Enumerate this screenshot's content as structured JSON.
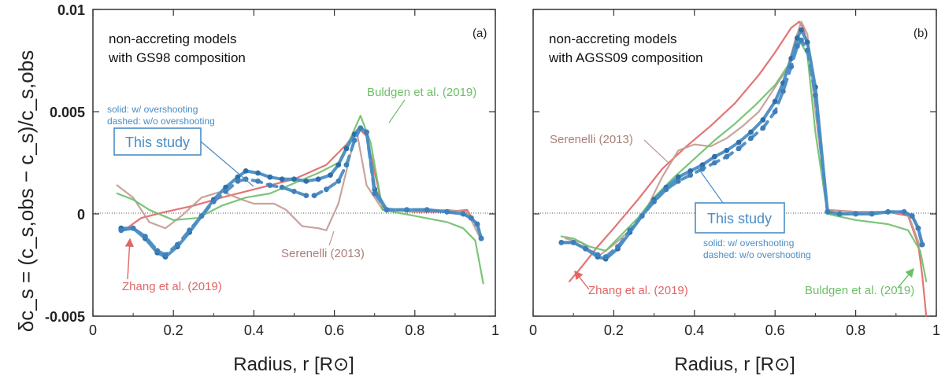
{
  "y_axis_label": "δc_s = (c_s,obs − c_s)/c_s,obs",
  "chart_data": [
    {
      "type": "line",
      "panel_tag": "(a)",
      "xlabel": "Radius, r [R⊙]",
      "x_ticks": [
        "0",
        "0.2",
        "0.4",
        "0.6",
        "0.8",
        "1"
      ],
      "y_ticks": [
        "-0.005",
        "0",
        "0.005",
        "0.01"
      ],
      "xlim": [
        0,
        1
      ],
      "ylim": [
        -0.005,
        0.01
      ],
      "zero_line": true,
      "annotations": {
        "model_line1": "non-accreting models",
        "model_line2": "with GS98 composition",
        "legend_solid": "solid: w/ overshooting",
        "legend_dashed": "dashed: w/o overshooting",
        "this_study": "This study",
        "serenelli": "Serenelli (2013)",
        "zhang": "Zhang et al. (2019)",
        "buldgen": "Buldgen et al. (2019)"
      },
      "series": [
        {
          "name": "Zhang et al. (2019)",
          "color": "#e06666",
          "style": "solid",
          "x": [
            0.07,
            0.12,
            0.18,
            0.25,
            0.32,
            0.4,
            0.5,
            0.58,
            0.63,
            0.66,
            0.68,
            0.72,
            0.8,
            0.88,
            0.93,
            0.96
          ],
          "y": [
            -0.0009,
            -0.0002,
            0.0001,
            0.0004,
            0.0008,
            0.0012,
            0.0017,
            0.0024,
            0.0034,
            0.0042,
            0.0038,
            0.0003,
            0.0001,
            0.0001,
            0.0002,
            -0.0008
          ]
        },
        {
          "name": "Serenelli (2013)",
          "color": "#c29a92",
          "style": "solid",
          "x": [
            0.06,
            0.1,
            0.14,
            0.18,
            0.22,
            0.27,
            0.32,
            0.37,
            0.4,
            0.45,
            0.48,
            0.52,
            0.56,
            0.58,
            0.61,
            0.63,
            0.655,
            0.68,
            0.72,
            0.8,
            0.88,
            0.93,
            0.96
          ],
          "y": [
            0.0014,
            0.0008,
            -0.0004,
            -0.0007,
            -0.0001,
            0.0008,
            0.0011,
            0.0007,
            0.0005,
            0.0005,
            0.0002,
            -0.0006,
            -0.0007,
            -0.0008,
            0.0005,
            0.0021,
            0.0041,
            0.0014,
            0.0002,
            0.0001,
            0.0002,
            0.0001,
            -0.0011
          ]
        },
        {
          "name": "Buldgen et al. (2019)",
          "color": "#6dbf68",
          "style": "solid",
          "x": [
            0.06,
            0.1,
            0.14,
            0.2,
            0.26,
            0.32,
            0.38,
            0.44,
            0.5,
            0.56,
            0.61,
            0.64,
            0.665,
            0.69,
            0.72,
            0.8,
            0.88,
            0.92,
            0.95,
            0.97
          ],
          "y": [
            0.001,
            0.0007,
            0.0002,
            -0.0003,
            -0.0002,
            0.0004,
            0.0008,
            0.001,
            0.0015,
            0.002,
            0.0025,
            0.0037,
            0.0048,
            0.0035,
            0.0002,
            -0.0001,
            -0.0004,
            -0.0007,
            -0.0013,
            -0.0034
          ]
        },
        {
          "name": "This study (w/ overshooting)",
          "color": "#4a8dc4",
          "style": "solid",
          "x": [
            0.07,
            0.1,
            0.13,
            0.16,
            0.18,
            0.21,
            0.24,
            0.27,
            0.3,
            0.33,
            0.36,
            0.38,
            0.41,
            0.44,
            0.47,
            0.5,
            0.53,
            0.56,
            0.59,
            0.61,
            0.63,
            0.65,
            0.665,
            0.68,
            0.7,
            0.73,
            0.78,
            0.83,
            0.88,
            0.92,
            0.94,
            0.955,
            0.965
          ],
          "y": [
            -0.0007,
            -0.0007,
            -0.0012,
            -0.0019,
            -0.0021,
            -0.0016,
            -0.0009,
            -0.0001,
            0.0007,
            0.0013,
            0.0018,
            0.0021,
            0.002,
            0.0018,
            0.0017,
            0.0017,
            0.0016,
            0.0017,
            0.0019,
            0.0024,
            0.0032,
            0.0039,
            0.0042,
            0.004,
            0.0012,
            0.0002,
            0.0002,
            0.0002,
            0.0001,
            0.0,
            -0.0002,
            -0.0005,
            -0.0012
          ]
        },
        {
          "name": "This study (w/o overshooting)",
          "color": "#4a8dc4",
          "style": "dashed",
          "x": [
            0.07,
            0.1,
            0.13,
            0.16,
            0.18,
            0.21,
            0.24,
            0.27,
            0.3,
            0.33,
            0.36,
            0.38,
            0.41,
            0.44,
            0.47,
            0.5,
            0.53,
            0.55,
            0.58,
            0.61,
            0.63,
            0.65,
            0.665,
            0.68,
            0.7,
            0.73,
            0.78,
            0.83,
            0.88,
            0.92,
            0.94,
            0.955,
            0.965
          ],
          "y": [
            -0.0008,
            -0.0007,
            -0.0011,
            -0.0018,
            -0.002,
            -0.0015,
            -0.0008,
            -0.0001,
            0.0006,
            0.0011,
            0.0016,
            0.0017,
            0.0016,
            0.0014,
            0.0013,
            0.0011,
            0.0009,
            0.0009,
            0.0012,
            0.0016,
            0.0024,
            0.0036,
            0.0042,
            0.004,
            0.001,
            0.0002,
            0.0002,
            0.0002,
            0.0001,
            0.0,
            -0.0002,
            -0.0005,
            -0.0012
          ]
        }
      ]
    },
    {
      "type": "line",
      "panel_tag": "(b)",
      "xlabel": "Radius, r [R⊙]",
      "x_ticks": [
        "0",
        "0.2",
        "0.4",
        "0.6",
        "0.8",
        "1"
      ],
      "y_ticks": [
        "-0.005",
        "0",
        "0.005",
        "0.01"
      ],
      "xlim": [
        0,
        1
      ],
      "ylim": [
        -0.005,
        0.01
      ],
      "zero_line": true,
      "annotations": {
        "model_line1": "non-accreting models",
        "model_line2": "with AGSS09 composition",
        "legend_solid": "solid: w/ overshooting",
        "legend_dashed": "dashed: w/o overshooting",
        "this_study": "This study",
        "serenelli": "Serenelli (2013)",
        "zhang": "Zhang et al. (2019)",
        "buldgen": "Buldgen et al. (2019)"
      },
      "series": [
        {
          "name": "Zhang et al. (2019)",
          "color": "#e06666",
          "style": "solid",
          "x": [
            0.09,
            0.12,
            0.16,
            0.2,
            0.26,
            0.32,
            0.38,
            0.44,
            0.5,
            0.56,
            0.6,
            0.64,
            0.66,
            0.67,
            0.69,
            0.73,
            0.8,
            0.88,
            0.93,
            0.955,
            0.965,
            0.975
          ],
          "y": [
            -0.0033,
            -0.0026,
            -0.0016,
            -0.0007,
            0.0007,
            0.0022,
            0.0033,
            0.0043,
            0.0054,
            0.0068,
            0.0079,
            0.0091,
            0.0094,
            0.0091,
            0.0075,
            0.0002,
            0.0001,
            0.0001,
            -0.0001,
            -0.0015,
            -0.003,
            -0.005
          ]
        },
        {
          "name": "Serenelli (2013)",
          "color": "#c29a92",
          "style": "solid",
          "x": [
            0.08,
            0.12,
            0.16,
            0.2,
            0.24,
            0.28,
            0.32,
            0.36,
            0.4,
            0.44,
            0.48,
            0.52,
            0.56,
            0.6,
            0.63,
            0.65,
            0.665,
            0.68,
            0.7,
            0.73,
            0.8,
            0.88,
            0.93,
            0.96
          ],
          "y": [
            -0.0012,
            -0.0014,
            -0.0021,
            -0.0015,
            -0.0008,
            0.0002,
            0.0018,
            0.0031,
            0.0034,
            0.0033,
            0.0037,
            0.0043,
            0.005,
            0.0062,
            0.0071,
            0.0085,
            0.0094,
            0.0088,
            0.005,
            0.0002,
            0.0001,
            0.0001,
            0.0,
            -0.0016
          ]
        },
        {
          "name": "Buldgen et al. (2019)",
          "color": "#6dbf68",
          "style": "solid",
          "x": [
            0.07,
            0.1,
            0.14,
            0.18,
            0.22,
            0.26,
            0.3,
            0.35,
            0.4,
            0.45,
            0.5,
            0.55,
            0.6,
            0.64,
            0.66,
            0.68,
            0.7,
            0.73,
            0.8,
            0.88,
            0.93,
            0.96,
            0.975
          ],
          "y": [
            -0.0011,
            -0.0012,
            -0.0016,
            -0.0018,
            -0.001,
            -0.0002,
            0.0008,
            0.0018,
            0.0027,
            0.0036,
            0.0044,
            0.0053,
            0.0063,
            0.0075,
            0.0085,
            0.0078,
            0.004,
            0.0,
            -0.0003,
            -0.0005,
            -0.0008,
            -0.0018,
            -0.0033
          ]
        },
        {
          "name": "This study (w/ overshooting)",
          "color": "#4a8dc4",
          "style": "solid",
          "x": [
            0.07,
            0.1,
            0.13,
            0.16,
            0.18,
            0.21,
            0.24,
            0.27,
            0.3,
            0.33,
            0.36,
            0.39,
            0.42,
            0.45,
            0.48,
            0.51,
            0.54,
            0.57,
            0.6,
            0.62,
            0.64,
            0.655,
            0.665,
            0.68,
            0.7,
            0.73,
            0.76,
            0.8,
            0.84,
            0.88,
            0.92,
            0.94,
            0.955,
            0.965
          ],
          "y": [
            -0.0014,
            -0.0014,
            -0.0017,
            -0.0021,
            -0.0022,
            -0.0017,
            -0.0009,
            -0.0001,
            0.0007,
            0.0013,
            0.0018,
            0.0021,
            0.0024,
            0.0028,
            0.0031,
            0.0035,
            0.004,
            0.0046,
            0.0055,
            0.0064,
            0.0076,
            0.0086,
            0.009,
            0.0084,
            0.0062,
            0.0001,
            0.0,
            0.0,
            0.0,
            0.0001,
            0.0001,
            -0.0001,
            -0.0007,
            -0.0015
          ]
        },
        {
          "name": "This study (w/o overshooting)",
          "color": "#4a8dc4",
          "style": "dashed",
          "x": [
            0.07,
            0.1,
            0.13,
            0.16,
            0.18,
            0.21,
            0.24,
            0.27,
            0.3,
            0.33,
            0.36,
            0.39,
            0.42,
            0.45,
            0.48,
            0.51,
            0.54,
            0.57,
            0.6,
            0.62,
            0.64,
            0.655,
            0.665,
            0.68,
            0.7,
            0.73,
            0.76,
            0.8,
            0.84,
            0.88,
            0.92,
            0.94,
            0.955,
            0.965
          ],
          "y": [
            -0.0014,
            -0.0014,
            -0.0017,
            -0.002,
            -0.0021,
            -0.0016,
            -0.0008,
            -0.0001,
            0.0006,
            0.0012,
            0.0016,
            0.0019,
            0.0022,
            0.0025,
            0.0028,
            0.0032,
            0.0037,
            0.0042,
            0.005,
            0.006,
            0.0072,
            0.0082,
            0.0085,
            0.008,
            0.0058,
            0.0001,
            0.0,
            0.0,
            0.0,
            0.0001,
            0.0001,
            -0.0001,
            -0.0007,
            -0.0015
          ]
        }
      ]
    }
  ]
}
